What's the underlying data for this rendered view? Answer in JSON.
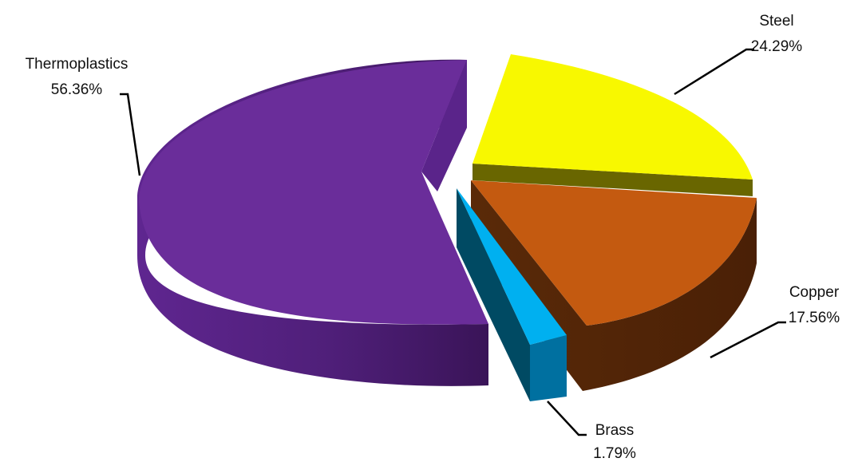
{
  "chart_data": {
    "type": "pie",
    "title": "",
    "style": "3d-exploded",
    "legend": "none",
    "slices": [
      {
        "label": "Steel",
        "value": 24.29,
        "value_label": "24.29%",
        "color": "#f8f800"
      },
      {
        "label": "Copper",
        "value": 17.56,
        "value_label": "17.56%",
        "color": "#c45a10"
      },
      {
        "label": "Brass",
        "value": 1.79,
        "value_label": "1.79%",
        "color": "#00b0f0"
      },
      {
        "label": "Thermoplastics",
        "value": 56.36,
        "value_label": "56.36%",
        "color": "#6a2d9a"
      }
    ]
  }
}
